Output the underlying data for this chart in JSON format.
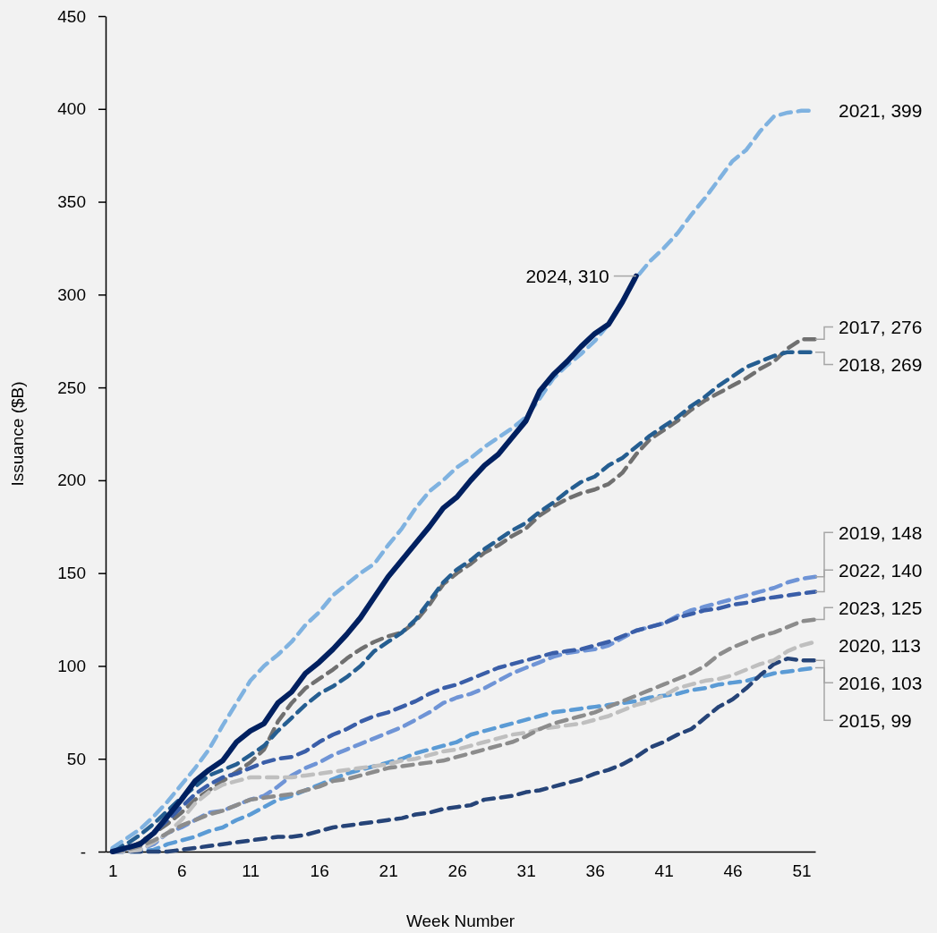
{
  "chart_data": {
    "type": "line",
    "xlabel": "Week Number",
    "ylabel": "Issuance ($B)",
    "x": [
      1,
      2,
      3,
      4,
      5,
      6,
      7,
      8,
      9,
      10,
      11,
      12,
      13,
      14,
      15,
      16,
      17,
      18,
      19,
      20,
      21,
      22,
      23,
      24,
      25,
      26,
      27,
      28,
      29,
      30,
      31,
      32,
      33,
      34,
      35,
      36,
      37,
      38,
      39,
      40,
      41,
      42,
      43,
      44,
      45,
      46,
      47,
      48,
      49,
      50,
      51,
      52
    ],
    "xlim": [
      0.5,
      52
    ],
    "xticks": [
      1,
      6,
      11,
      16,
      21,
      26,
      31,
      36,
      41,
      46,
      51
    ],
    "ylim": [
      0,
      450
    ],
    "yticks": [
      {
        "value": 0,
        "label": "-"
      },
      50,
      100,
      150,
      200,
      250,
      300,
      350,
      400,
      450
    ],
    "grid": false,
    "series": [
      {
        "color": "#5b9bd5",
        "line_style": "dashed",
        "values": [
          0,
          0,
          0,
          1,
          4,
          6,
          8,
          11,
          13,
          17,
          20,
          24,
          28,
          30,
          33,
          36,
          39,
          42,
          44,
          46,
          48,
          50,
          53,
          55,
          57,
          59,
          63,
          65,
          67,
          69,
          71,
          73,
          75,
          76,
          77,
          78,
          79,
          80,
          81,
          83,
          84,
          85,
          87,
          88,
          90,
          91,
          92,
          94,
          96,
          97,
          98,
          99
        ],
        "value_labels": [
          null,
          null,
          null,
          null,
          null,
          null,
          null,
          null,
          null,
          null,
          null,
          null,
          null,
          null,
          null,
          null,
          null,
          null,
          null,
          null,
          null,
          null,
          null,
          null,
          null,
          null,
          null,
          null,
          null,
          null,
          null,
          null,
          null,
          null,
          null,
          null,
          null,
          null,
          null,
          null,
          null,
          null,
          null,
          null,
          null,
          null,
          null,
          null,
          null,
          null,
          null,
          "2015, 99"
        ]
      },
      {
        "color": "#264478",
        "line_style": "dashed",
        "values": [
          0,
          0,
          0,
          0,
          0,
          1,
          2,
          3,
          4,
          5,
          6,
          7,
          8,
          8,
          9,
          11,
          13,
          14,
          15,
          16,
          17,
          18,
          20,
          21,
          23,
          24,
          25,
          28,
          29,
          30,
          32,
          33,
          35,
          37,
          39,
          42,
          44,
          47,
          51,
          56,
          59,
          63,
          66,
          72,
          78,
          82,
          88,
          95,
          101,
          104,
          103,
          103
        ],
        "value_labels": [
          null,
          null,
          null,
          null,
          null,
          null,
          null,
          null,
          null,
          null,
          null,
          null,
          null,
          null,
          null,
          null,
          null,
          null,
          null,
          null,
          null,
          null,
          null,
          null,
          null,
          null,
          null,
          null,
          null,
          null,
          null,
          null,
          null,
          null,
          null,
          null,
          null,
          null,
          null,
          null,
          null,
          null,
          null,
          null,
          null,
          null,
          null,
          null,
          null,
          null,
          null,
          "2016, 103"
        ]
      },
      {
        "color": "#707070",
        "line_style": "dashed",
        "values": [
          0,
          1,
          5,
          10,
          15,
          21,
          28,
          33,
          38,
          43,
          48,
          55,
          70,
          80,
          88,
          93,
          98,
          104,
          109,
          113,
          116,
          118,
          124,
          133,
          144,
          150,
          155,
          161,
          165,
          170,
          174,
          181,
          186,
          190,
          193,
          195,
          198,
          204,
          214,
          222,
          227,
          232,
          238,
          243,
          247,
          251,
          255,
          260,
          264,
          271,
          276,
          276
        ],
        "value_labels": [
          null,
          null,
          null,
          null,
          null,
          null,
          null,
          null,
          null,
          null,
          null,
          null,
          null,
          null,
          null,
          null,
          null,
          null,
          null,
          null,
          null,
          null,
          null,
          null,
          null,
          null,
          null,
          null,
          null,
          null,
          null,
          null,
          null,
          null,
          null,
          null,
          null,
          null,
          null,
          null,
          null,
          null,
          null,
          null,
          null,
          null,
          null,
          null,
          null,
          null,
          null,
          "2017, 276"
        ]
      },
      {
        "color": "#255e91",
        "line_style": "dashed",
        "values": [
          1,
          4,
          9,
          15,
          22,
          29,
          35,
          41,
          44,
          47,
          52,
          57,
          65,
          72,
          79,
          85,
          89,
          94,
          100,
          108,
          113,
          118,
          125,
          135,
          145,
          152,
          157,
          163,
          168,
          173,
          177,
          183,
          188,
          194,
          199,
          202,
          208,
          212,
          218,
          224,
          229,
          234,
          240,
          245,
          251,
          256,
          261,
          264,
          267,
          269,
          269,
          269
        ],
        "value_labels": [
          null,
          null,
          null,
          null,
          null,
          null,
          null,
          null,
          null,
          null,
          null,
          null,
          null,
          null,
          null,
          null,
          null,
          null,
          null,
          null,
          null,
          null,
          null,
          null,
          null,
          null,
          null,
          null,
          null,
          null,
          null,
          null,
          null,
          null,
          null,
          null,
          null,
          null,
          null,
          null,
          null,
          null,
          null,
          null,
          null,
          null,
          null,
          null,
          null,
          null,
          null,
          "2018, 269"
        ]
      },
      {
        "color": "#6f94d6",
        "line_style": "dashed",
        "values": [
          0,
          0,
          1,
          4,
          10,
          13,
          17,
          21,
          22,
          25,
          28,
          30,
          35,
          41,
          45,
          48,
          52,
          55,
          58,
          61,
          64,
          67,
          71,
          75,
          80,
          83,
          85,
          88,
          92,
          96,
          99,
          102,
          105,
          107,
          108,
          109,
          111,
          115,
          119,
          121,
          123,
          127,
          130,
          132,
          134,
          136,
          138,
          140,
          142,
          145,
          147,
          148
        ],
        "value_labels": [
          null,
          null,
          null,
          null,
          null,
          null,
          null,
          null,
          null,
          null,
          null,
          null,
          null,
          null,
          null,
          null,
          null,
          null,
          null,
          null,
          null,
          null,
          null,
          null,
          null,
          null,
          null,
          null,
          null,
          null,
          null,
          null,
          null,
          null,
          null,
          null,
          null,
          null,
          null,
          null,
          null,
          null,
          null,
          null,
          null,
          null,
          null,
          null,
          null,
          null,
          null,
          "2019, 148"
        ]
      },
      {
        "color": "#bfbfbf",
        "line_style": "dashed",
        "values": [
          0,
          0,
          1,
          5,
          10,
          17,
          26,
          32,
          36,
          38,
          40,
          40,
          40,
          40,
          41,
          42,
          43,
          44,
          45,
          46,
          47,
          49,
          50,
          52,
          54,
          55,
          57,
          59,
          61,
          63,
          64,
          66,
          67,
          68,
          69,
          71,
          73,
          76,
          79,
          81,
          84,
          88,
          90,
          92,
          93,
          95,
          98,
          101,
          103,
          108,
          111,
          113
        ],
        "value_labels": [
          null,
          null,
          null,
          null,
          null,
          null,
          null,
          null,
          null,
          null,
          null,
          null,
          null,
          null,
          null,
          null,
          null,
          null,
          null,
          null,
          null,
          null,
          null,
          null,
          null,
          null,
          null,
          null,
          null,
          null,
          null,
          null,
          null,
          null,
          null,
          null,
          null,
          null,
          null,
          null,
          null,
          null,
          null,
          null,
          null,
          null,
          null,
          null,
          null,
          null,
          null,
          "2020, 113"
        ]
      },
      {
        "color": "#7fb2e0",
        "line_style": "dashed",
        "values": [
          2,
          7,
          12,
          19,
          27,
          36,
          45,
          55,
          68,
          80,
          92,
          100,
          106,
          113,
          122,
          129,
          138,
          144,
          150,
          155,
          165,
          174,
          185,
          194,
          200,
          207,
          212,
          218,
          223,
          228,
          234,
          244,
          255,
          262,
          268,
          275,
          284,
          296,
          309,
          318,
          325,
          333,
          343,
          352,
          362,
          372,
          378,
          388,
          396,
          398,
          399,
          399
        ],
        "value_labels": [
          null,
          null,
          null,
          null,
          null,
          null,
          null,
          null,
          null,
          null,
          null,
          null,
          null,
          null,
          null,
          null,
          null,
          null,
          null,
          null,
          null,
          null,
          null,
          null,
          null,
          null,
          null,
          null,
          null,
          null,
          null,
          null,
          null,
          null,
          null,
          null,
          null,
          null,
          null,
          null,
          null,
          null,
          null,
          null,
          null,
          null,
          null,
          null,
          null,
          null,
          null,
          "2021, 399"
        ]
      },
      {
        "color": "#3a5ea8",
        "line_style": "dashed",
        "values": [
          0,
          1,
          4,
          10,
          17,
          24,
          31,
          36,
          40,
          42,
          45,
          48,
          50,
          51,
          54,
          59,
          63,
          66,
          70,
          73,
          75,
          78,
          81,
          85,
          88,
          90,
          93,
          96,
          99,
          101,
          103,
          105,
          107,
          108,
          109,
          111,
          113,
          116,
          119,
          121,
          123,
          126,
          128,
          130,
          131,
          133,
          134,
          136,
          137,
          138,
          139,
          140
        ],
        "value_labels": [
          null,
          null,
          null,
          null,
          null,
          null,
          null,
          null,
          null,
          null,
          null,
          null,
          null,
          null,
          null,
          null,
          null,
          null,
          null,
          null,
          null,
          null,
          null,
          null,
          null,
          null,
          null,
          null,
          null,
          null,
          null,
          null,
          null,
          null,
          null,
          null,
          null,
          null,
          null,
          null,
          null,
          null,
          null,
          null,
          null,
          null,
          null,
          null,
          null,
          null,
          null,
          "2022, 140"
        ]
      },
      {
        "color": "#8c8c8c",
        "line_style": "dashed",
        "values": [
          0,
          1,
          3,
          6,
          10,
          14,
          17,
          20,
          22,
          25,
          28,
          29,
          30,
          31,
          33,
          35,
          38,
          39,
          41,
          43,
          45,
          46,
          47,
          48,
          49,
          51,
          53,
          55,
          57,
          59,
          62,
          66,
          69,
          71,
          73,
          75,
          78,
          81,
          84,
          87,
          90,
          93,
          96,
          100,
          106,
          110,
          113,
          116,
          118,
          121,
          124,
          125
        ],
        "value_labels": [
          null,
          null,
          null,
          null,
          null,
          null,
          null,
          null,
          null,
          null,
          null,
          null,
          null,
          null,
          null,
          null,
          null,
          null,
          null,
          null,
          null,
          null,
          null,
          null,
          null,
          null,
          null,
          null,
          null,
          null,
          null,
          null,
          null,
          null,
          null,
          null,
          null,
          null,
          null,
          null,
          null,
          null,
          null,
          null,
          null,
          null,
          null,
          null,
          null,
          null,
          null,
          "2023, 125"
        ]
      },
      {
        "color": "#002060",
        "line_style": "solid",
        "x": [
          1,
          2,
          3,
          4,
          5,
          6,
          7,
          8,
          9,
          10,
          11,
          12,
          13,
          14,
          15,
          16,
          17,
          18,
          19,
          20,
          21,
          22,
          23,
          24,
          25,
          26,
          27,
          28,
          29,
          30,
          31,
          32,
          33,
          34,
          35,
          36,
          37,
          38,
          39
        ],
        "values": [
          0,
          2,
          4,
          10,
          19,
          28,
          38,
          44,
          49,
          59,
          65,
          69,
          80,
          86,
          96,
          102,
          109,
          117,
          126,
          137,
          148,
          157,
          166,
          175,
          185,
          191,
          200,
          208,
          214,
          223,
          232,
          248,
          257,
          264,
          272,
          279,
          284,
          296,
          310
        ],
        "value_labels": [
          null,
          null,
          null,
          null,
          null,
          null,
          null,
          null,
          null,
          null,
          null,
          null,
          null,
          null,
          null,
          null,
          null,
          null,
          null,
          null,
          null,
          null,
          null,
          null,
          null,
          null,
          null,
          null,
          null,
          null,
          null,
          null,
          null,
          null,
          null,
          null,
          null,
          null,
          "2024, 310"
        ]
      }
    ]
  }
}
